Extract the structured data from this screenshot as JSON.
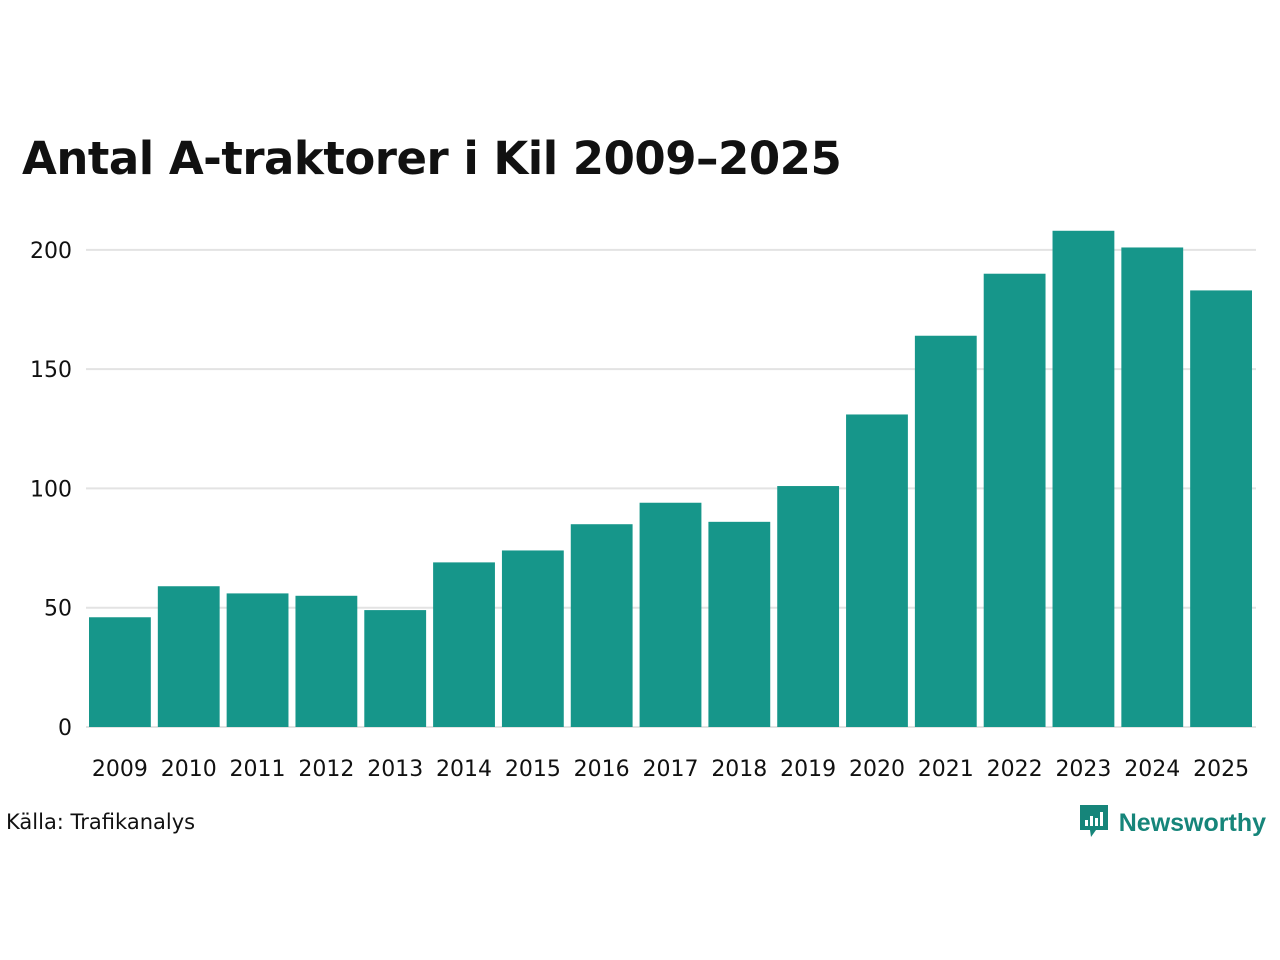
{
  "chart_data": {
    "type": "bar",
    "title": "Antal A-traktorer i Kil 2009–2025",
    "xlabel": "",
    "ylabel": "",
    "categories": [
      "2009",
      "2010",
      "2011",
      "2012",
      "2013",
      "2014",
      "2015",
      "2016",
      "2017",
      "2018",
      "2019",
      "2020",
      "2021",
      "2022",
      "2023",
      "2024",
      "2025"
    ],
    "values": [
      46,
      59,
      56,
      55,
      49,
      69,
      74,
      85,
      94,
      86,
      101,
      131,
      164,
      190,
      208,
      201,
      183
    ],
    "ylim": [
      0,
      210
    ],
    "yticks": [
      "0",
      "50",
      "100",
      "150",
      "200"
    ],
    "grid": true,
    "legend": "none",
    "bar_color": "#16968a",
    "grid_color": "#e3e3e3"
  },
  "footer": {
    "source": "Källa: Trafikanalys",
    "brand": "Newsworthy",
    "brand_icon": "newsworthy-logo-icon",
    "brand_color": "#16857a"
  }
}
